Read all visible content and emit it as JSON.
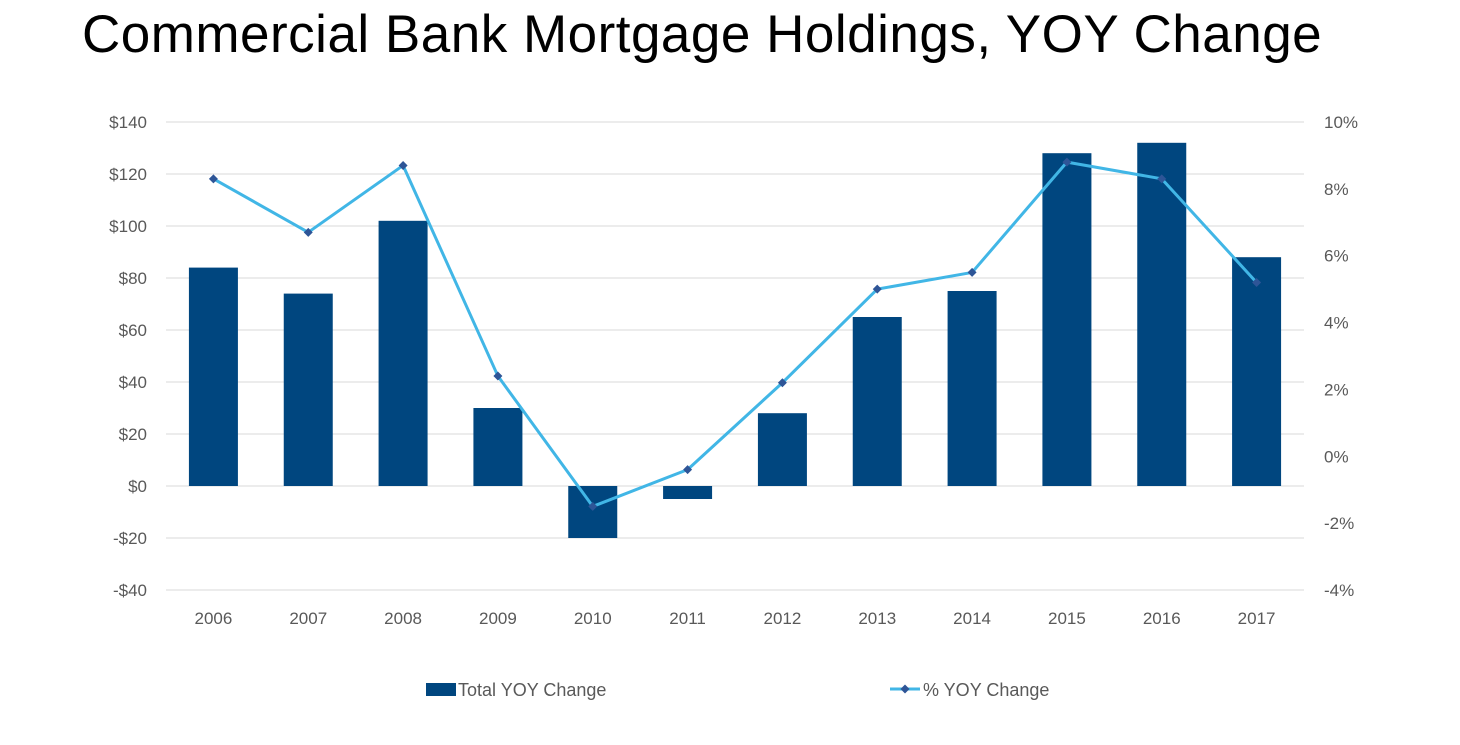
{
  "chart_data": {
    "type": "bar",
    "title": "Commercial Bank Mortgage Holdings, YOY Change",
    "categories": [
      "2006",
      "2007",
      "2008",
      "2009",
      "2010",
      "2011",
      "2012",
      "2013",
      "2014",
      "2015",
      "2016",
      "2017"
    ],
    "series": [
      {
        "name": "Total YOY Change",
        "type": "bar",
        "axis": "left",
        "color": "#00467f",
        "values": [
          84,
          74,
          102,
          30,
          -20,
          -5,
          28,
          65,
          75,
          128,
          132,
          88
        ]
      },
      {
        "name": "% YOY Change",
        "type": "line",
        "axis": "right",
        "color": "#41b6e6",
        "marker_color": "#2e5597",
        "values": [
          8.3,
          6.7,
          8.7,
          2.4,
          -1.5,
          -0.4,
          2.2,
          5.0,
          5.5,
          8.8,
          8.3,
          5.2
        ]
      }
    ],
    "y_left": {
      "ylim": [
        -40,
        140
      ],
      "ticks": [
        140,
        120,
        100,
        80,
        60,
        40,
        20,
        0,
        -20,
        -40
      ],
      "tick_labels": [
        "$140",
        "$120",
        "$100",
        "$80",
        "$60",
        "$40",
        "$20",
        "$0",
        "-$20",
        "-$40"
      ]
    },
    "y_right": {
      "ylim": [
        -4,
        10
      ],
      "ticks": [
        10,
        8,
        6,
        4,
        2,
        0,
        -2,
        -4
      ],
      "tick_labels": [
        "10%",
        "8%",
        "6%",
        "4%",
        "2%",
        "0%",
        "-2%",
        "-4%"
      ]
    },
    "grid": true,
    "legend_position": "bottom"
  }
}
